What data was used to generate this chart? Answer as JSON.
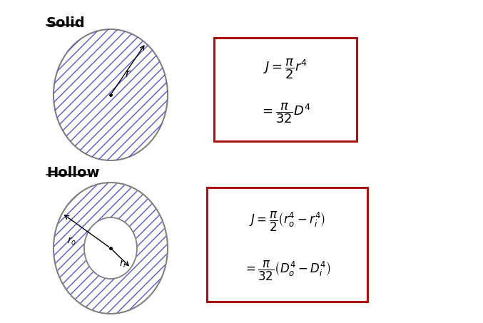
{
  "background_color": "#ffffff",
  "solid_label": "Solid",
  "hollow_label": "Hollow",
  "circle_color": "#808080",
  "hatch_color": "#4444cc",
  "box_edge_color": "#aa1111",
  "text_color": "#000000",
  "figsize": [
    6.77,
    4.53
  ],
  "dpi": 100
}
